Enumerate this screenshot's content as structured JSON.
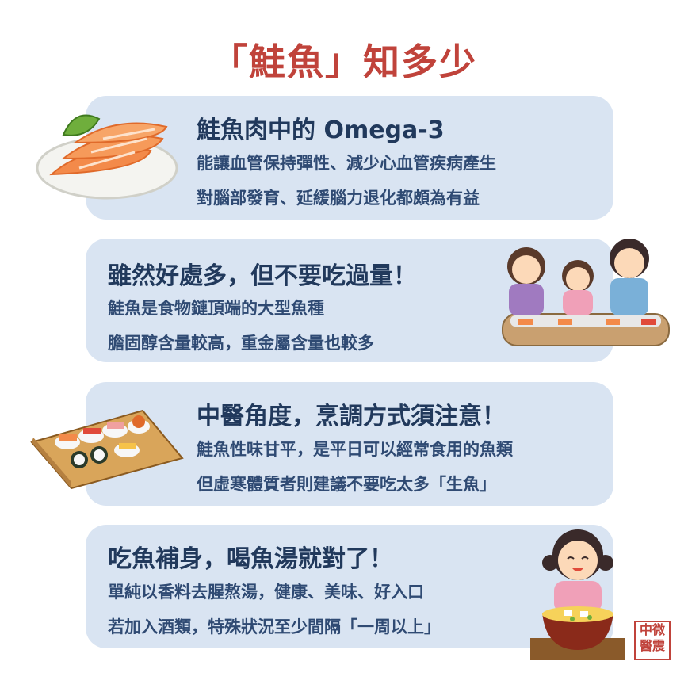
{
  "title": "「鮭魚」知多少",
  "sections": [
    {
      "heading": "鮭魚肉中的 Omega-3",
      "lines": [
        "能讓血管保持彈性、減少心血管疾病產生",
        "對腦部發育、延緩腦力退化都頗為有益"
      ],
      "illustration": "salmon-sashimi-plate"
    },
    {
      "heading": "雖然好處多，但不要吃過量！",
      "lines": [
        "鮭魚是食物鏈頂端的大型魚種",
        "膽固醇含量較高，重金屬含量也較多"
      ],
      "illustration": "family-eating-sushi"
    },
    {
      "heading": "中醫角度，烹調方式須注意！",
      "lines": [
        "鮭魚性味甘平，是平日可以經常食用的魚類",
        "但虛寒體質者則建議不要吃太多「生魚」"
      ],
      "illustration": "sushi-board"
    },
    {
      "heading": "吃魚補身，喝魚湯就對了！",
      "lines": [
        "單純以香料去腥熬湯，健康、美味、好入口",
        "若加入酒類，特殊狀況至少間隔「一周以上」"
      ],
      "illustration": "girl-with-fish-soup"
    }
  ],
  "seal": [
    "中",
    "微",
    "醫",
    "震"
  ],
  "colors": {
    "title": "#c0433b",
    "card": "#d9e4f2",
    "heading": "#21395c",
    "text": "#2f4a73"
  }
}
